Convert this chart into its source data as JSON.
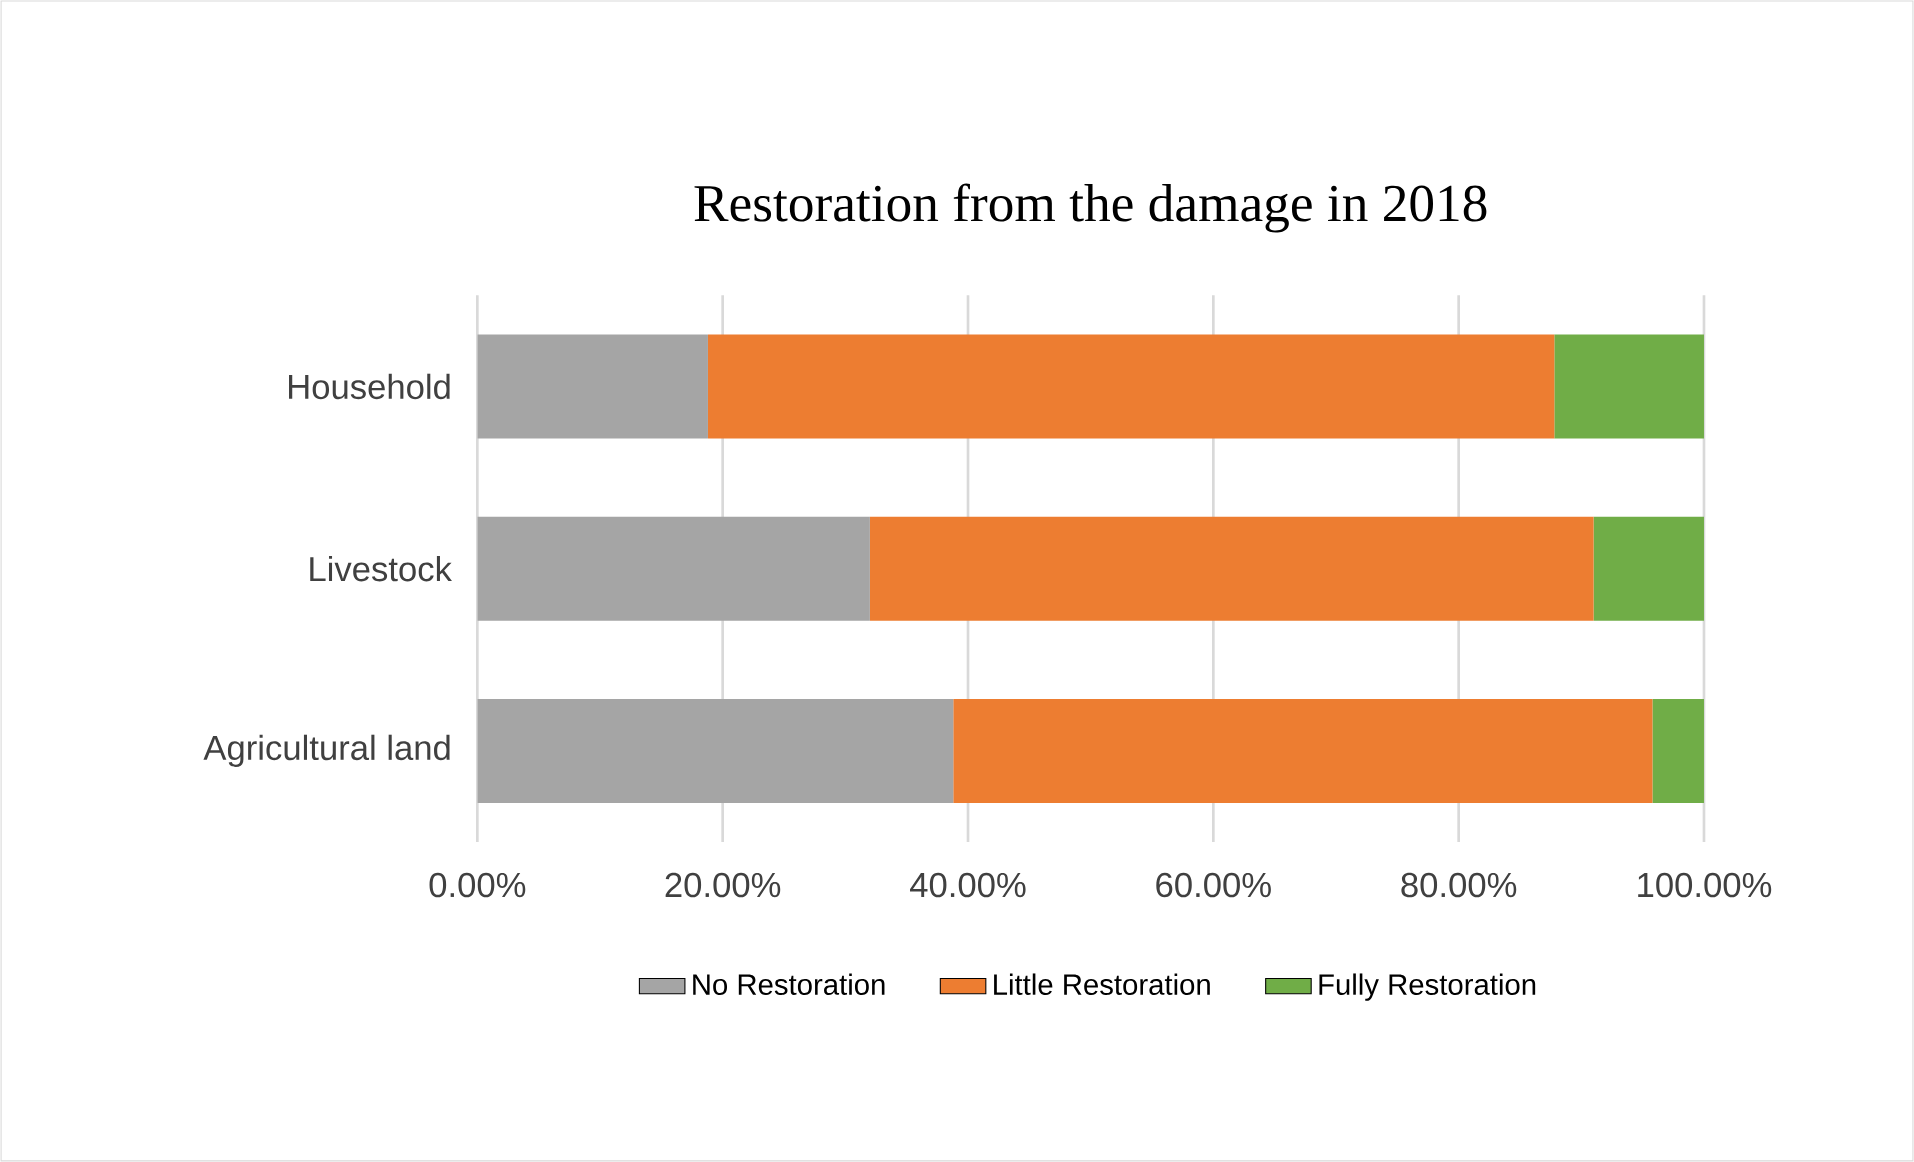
{
  "chart_data": {
    "type": "bar",
    "orientation": "horizontal",
    "stacked": true,
    "title": "Restoration from the damage in 2018",
    "categories": [
      "Household",
      "Livestock",
      "Agricultural land"
    ],
    "series": [
      {
        "name": "No Restoration",
        "color": "#a5a5a5",
        "values": [
          18.8,
          32,
          38.8
        ]
      },
      {
        "name": "Little Restoration",
        "color": "#ed7d31",
        "values": [
          69,
          59,
          57
        ]
      },
      {
        "name": "Fully Restoration",
        "color": "#70ad47",
        "values": [
          12.2,
          9,
          4.2
        ]
      }
    ],
    "xlim": [
      0,
      100
    ],
    "xticks": [
      {
        "value": 0,
        "label": "0.00%"
      },
      {
        "value": 20,
        "label": "20.00%"
      },
      {
        "value": 40,
        "label": "40.00%"
      },
      {
        "value": 60,
        "label": "60.00%"
      },
      {
        "value": 80,
        "label": "80.00%"
      },
      {
        "value": 100,
        "label": "100.00%"
      }
    ],
    "grid": "x",
    "legend": "bottom"
  }
}
